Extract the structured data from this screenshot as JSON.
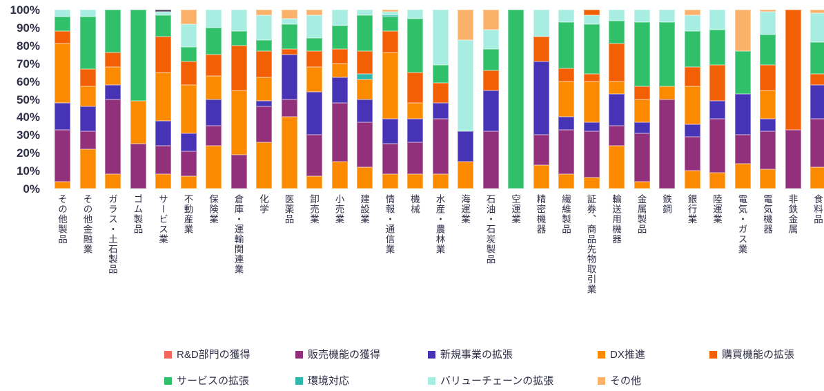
{
  "chart_data": {
    "type": "bar",
    "subtype": "stacked-100-percent",
    "title": "",
    "ylabel": "",
    "xlabel": "",
    "grid": false,
    "y_axis": {
      "min": 0,
      "max": 100,
      "tick_step": 10,
      "ticks": [
        "100%",
        "90%",
        "80%",
        "70%",
        "60%",
        "50%",
        "40%",
        "30%",
        "20%",
        "10%",
        "0%"
      ]
    },
    "colors": {
      "O": "#fb8a00",
      "P": "#93307c",
      "I": "#4733b5",
      "DO": "#f25f05",
      "G": "#2fc069",
      "T": "#2db8ad",
      "C": "#a8ede1",
      "PE": "#fbb169",
      "DK": "#45455c",
      "SA": "#f4655c"
    },
    "legend": {
      "position": "bottom",
      "rows": [
        [
          {
            "label": "R&D部門の獲得",
            "color": "#f4655c"
          },
          {
            "label": "販売機能の獲得",
            "color": "#93307c"
          },
          {
            "label": "新規事業の拡張",
            "color": "#4733b5"
          },
          {
            "label": "DX推進",
            "color": "#fb8a00"
          },
          {
            "label": "購買機能の拡張",
            "color": "#f25f05"
          }
        ],
        [
          {
            "label": "サービスの拡張",
            "color": "#2fc069"
          },
          {
            "label": "環境対応",
            "color": "#2db8ad"
          },
          {
            "label": "バリューチェーンの拡張",
            "color": "#a8ede1"
          },
          {
            "label": "その他",
            "color": "#fbb169"
          }
        ]
      ]
    },
    "categories": [
      "その他製品",
      "その他金融業",
      "ガラス・土石製品",
      "ゴム製品",
      "サービス業",
      "不動産業",
      "保険業",
      "倉庫・運輸関連業",
      "化学",
      "医薬品",
      "卸売業",
      "小売業",
      "建設業",
      "情報・通信業",
      "機械",
      "水産・農林業",
      "海運業",
      "石油・石炭製品",
      "空運業",
      "精密機器",
      "繊維製品",
      "証券、商品先物取引業",
      "輸送用機器",
      "金属製品",
      "鉄鋼",
      "銀行業",
      "陸運業",
      "電気・ガス業",
      "電気機器",
      "非鉄金属",
      "食料品"
    ],
    "bars": [
      {
        "label": "その他製品",
        "segments": [
          [
            "O",
            4
          ],
          [
            "P",
            29
          ],
          [
            "I",
            15
          ],
          [
            "O",
            33
          ],
          [
            "DO",
            7
          ],
          [
            "G",
            8
          ],
          [
            "C",
            4
          ]
        ]
      },
      {
        "label": "その他金融業",
        "segments": [
          [
            "O",
            22
          ],
          [
            "P",
            10
          ],
          [
            "I",
            14
          ],
          [
            "O",
            11
          ],
          [
            "DO",
            10
          ],
          [
            "G",
            29
          ],
          [
            "C",
            4
          ]
        ]
      },
      {
        "label": "ガラス・土石製品",
        "segments": [
          [
            "O",
            8
          ],
          [
            "P",
            42
          ],
          [
            "I",
            8
          ],
          [
            "O",
            10
          ],
          [
            "DO",
            8
          ],
          [
            "G",
            24
          ]
        ]
      },
      {
        "label": "ゴム製品",
        "segments": [
          [
            "P",
            25
          ],
          [
            "O",
            24
          ],
          [
            "G",
            51
          ]
        ]
      },
      {
        "label": "サービス業",
        "segments": [
          [
            "O",
            8
          ],
          [
            "P",
            16
          ],
          [
            "I",
            14
          ],
          [
            "O",
            27
          ],
          [
            "DO",
            20
          ],
          [
            "G",
            12
          ],
          [
            "C",
            2
          ],
          [
            "DK",
            1
          ]
        ]
      },
      {
        "label": "不動産業",
        "segments": [
          [
            "O",
            7
          ],
          [
            "P",
            14
          ],
          [
            "I",
            10
          ],
          [
            "O",
            27
          ],
          [
            "DO",
            13
          ],
          [
            "G",
            8
          ],
          [
            "C",
            13
          ],
          [
            "PE",
            8
          ]
        ]
      },
      {
        "label": "保険業",
        "segments": [
          [
            "O",
            24
          ],
          [
            "P",
            11
          ],
          [
            "I",
            15
          ],
          [
            "O",
            13
          ],
          [
            "DO",
            12
          ],
          [
            "G",
            15
          ],
          [
            "C",
            10
          ]
        ]
      },
      {
        "label": "倉庫・運輸関連業",
        "segments": [
          [
            "P",
            19
          ],
          [
            "O",
            36
          ],
          [
            "DO",
            25
          ],
          [
            "G",
            8
          ],
          [
            "C",
            12
          ]
        ]
      },
      {
        "label": "化学",
        "segments": [
          [
            "O",
            26
          ],
          [
            "P",
            20
          ],
          [
            "I",
            3
          ],
          [
            "O",
            13
          ],
          [
            "DO",
            15
          ],
          [
            "G",
            6
          ],
          [
            "C",
            14
          ],
          [
            "PE",
            3
          ]
        ]
      },
      {
        "label": "医薬品",
        "segments": [
          [
            "O",
            40
          ],
          [
            "P",
            10
          ],
          [
            "I",
            25
          ],
          [
            "DO",
            3
          ],
          [
            "G",
            14
          ],
          [
            "C",
            3
          ],
          [
            "PE",
            5
          ]
        ]
      },
      {
        "label": "卸売業",
        "segments": [
          [
            "O",
            7
          ],
          [
            "P",
            23
          ],
          [
            "I",
            24
          ],
          [
            "O",
            14
          ],
          [
            "DO",
            9
          ],
          [
            "G",
            7
          ],
          [
            "C",
            13
          ],
          [
            "PE",
            3
          ]
        ]
      },
      {
        "label": "小売業",
        "segments": [
          [
            "O",
            15
          ],
          [
            "P",
            33
          ],
          [
            "I",
            14
          ],
          [
            "O",
            8
          ],
          [
            "DO",
            8
          ],
          [
            "G",
            13
          ],
          [
            "C",
            9
          ]
        ]
      },
      {
        "label": "建設業",
        "segments": [
          [
            "O",
            12
          ],
          [
            "P",
            25
          ],
          [
            "I",
            13
          ],
          [
            "O",
            11
          ],
          [
            "T",
            3
          ],
          [
            "DO",
            13
          ],
          [
            "G",
            20
          ],
          [
            "C",
            3
          ]
        ]
      },
      {
        "label": "情報・通信業",
        "segments": [
          [
            "O",
            8
          ],
          [
            "P",
            17
          ],
          [
            "I",
            14
          ],
          [
            "O",
            37
          ],
          [
            "DO",
            12
          ],
          [
            "G",
            8
          ],
          [
            "T",
            1
          ],
          [
            "C",
            2
          ],
          [
            "PE",
            1
          ]
        ]
      },
      {
        "label": "機械",
        "segments": [
          [
            "O",
            8
          ],
          [
            "P",
            18
          ],
          [
            "I",
            13
          ],
          [
            "O",
            9
          ],
          [
            "DO",
            17
          ],
          [
            "G",
            30
          ],
          [
            "C",
            5
          ]
        ]
      },
      {
        "label": "水産・農林業",
        "segments": [
          [
            "O",
            8
          ],
          [
            "P",
            31
          ],
          [
            "I",
            9
          ],
          [
            "DO",
            11
          ],
          [
            "G",
            10
          ],
          [
            "C",
            31
          ]
        ]
      },
      {
        "label": "海運業",
        "segments": [
          [
            "O",
            15
          ],
          [
            "I",
            17
          ],
          [
            "C",
            51
          ],
          [
            "PE",
            17
          ]
        ]
      },
      {
        "label": "石油・石炭製品",
        "segments": [
          [
            "P",
            32
          ],
          [
            "I",
            23
          ],
          [
            "DO",
            11
          ],
          [
            "G",
            12
          ],
          [
            "C",
            11
          ],
          [
            "PE",
            11
          ]
        ]
      },
      {
        "label": "空運業",
        "segments": [
          [
            "G",
            100
          ]
        ]
      },
      {
        "label": "精密機器",
        "segments": [
          [
            "O",
            13
          ],
          [
            "P",
            17
          ],
          [
            "I",
            41
          ],
          [
            "DO",
            14
          ],
          [
            "C",
            15
          ]
        ]
      },
      {
        "label": "繊維製品",
        "segments": [
          [
            "O",
            8
          ],
          [
            "P",
            25
          ],
          [
            "I",
            7
          ],
          [
            "O",
            20
          ],
          [
            "DO",
            7
          ],
          [
            "G",
            26
          ],
          [
            "C",
            7
          ]
        ]
      },
      {
        "label": "証券、商品先物取引業",
        "segments": [
          [
            "O",
            6
          ],
          [
            "P",
            26
          ],
          [
            "I",
            5
          ],
          [
            "O",
            23
          ],
          [
            "DO",
            4
          ],
          [
            "G",
            28
          ],
          [
            "C",
            5
          ],
          [
            "DO",
            3
          ]
        ]
      },
      {
        "label": "輸送用機器",
        "segments": [
          [
            "O",
            24
          ],
          [
            "P",
            11
          ],
          [
            "I",
            18
          ],
          [
            "O",
            7
          ],
          [
            "DO",
            21
          ],
          [
            "G",
            13
          ],
          [
            "C",
            6
          ]
        ]
      },
      {
        "label": "金属製品",
        "segments": [
          [
            "O",
            4
          ],
          [
            "P",
            27
          ],
          [
            "I",
            6
          ],
          [
            "O",
            13
          ],
          [
            "DO",
            7
          ],
          [
            "G",
            36
          ],
          [
            "C",
            7
          ]
        ]
      },
      {
        "label": "鉄鋼",
        "segments": [
          [
            "P",
            50
          ],
          [
            "O",
            7
          ],
          [
            "G",
            36
          ],
          [
            "C",
            7
          ]
        ]
      },
      {
        "label": "銀行業",
        "segments": [
          [
            "O",
            10
          ],
          [
            "P",
            19
          ],
          [
            "I",
            7
          ],
          [
            "O",
            21
          ],
          [
            "DO",
            11
          ],
          [
            "G",
            20
          ],
          [
            "C",
            9
          ],
          [
            "PE",
            3
          ]
        ]
      },
      {
        "label": "陸運業",
        "segments": [
          [
            "O",
            9
          ],
          [
            "P",
            30
          ],
          [
            "I",
            10
          ],
          [
            "DO",
            20
          ],
          [
            "G",
            20
          ],
          [
            "C",
            11
          ]
        ]
      },
      {
        "label": "電気・ガス業",
        "segments": [
          [
            "O",
            14
          ],
          [
            "P",
            16
          ],
          [
            "I",
            23
          ],
          [
            "G",
            24
          ],
          [
            "PE",
            23
          ]
        ]
      },
      {
        "label": "電気機器",
        "segments": [
          [
            "O",
            11
          ],
          [
            "P",
            21
          ],
          [
            "I",
            7
          ],
          [
            "O",
            16
          ],
          [
            "DO",
            14
          ],
          [
            "G",
            17
          ],
          [
            "C",
            13
          ],
          [
            "PE",
            1
          ]
        ]
      },
      {
        "label": "非鉄金属",
        "segments": [
          [
            "P",
            33
          ],
          [
            "DO",
            67
          ]
        ]
      },
      {
        "label": "食料品",
        "segments": [
          [
            "O",
            12
          ],
          [
            "P",
            27
          ],
          [
            "I",
            19
          ],
          [
            "DO",
            6
          ],
          [
            "G",
            18
          ],
          [
            "C",
            16
          ],
          [
            "PE",
            2
          ]
        ]
      }
    ]
  }
}
